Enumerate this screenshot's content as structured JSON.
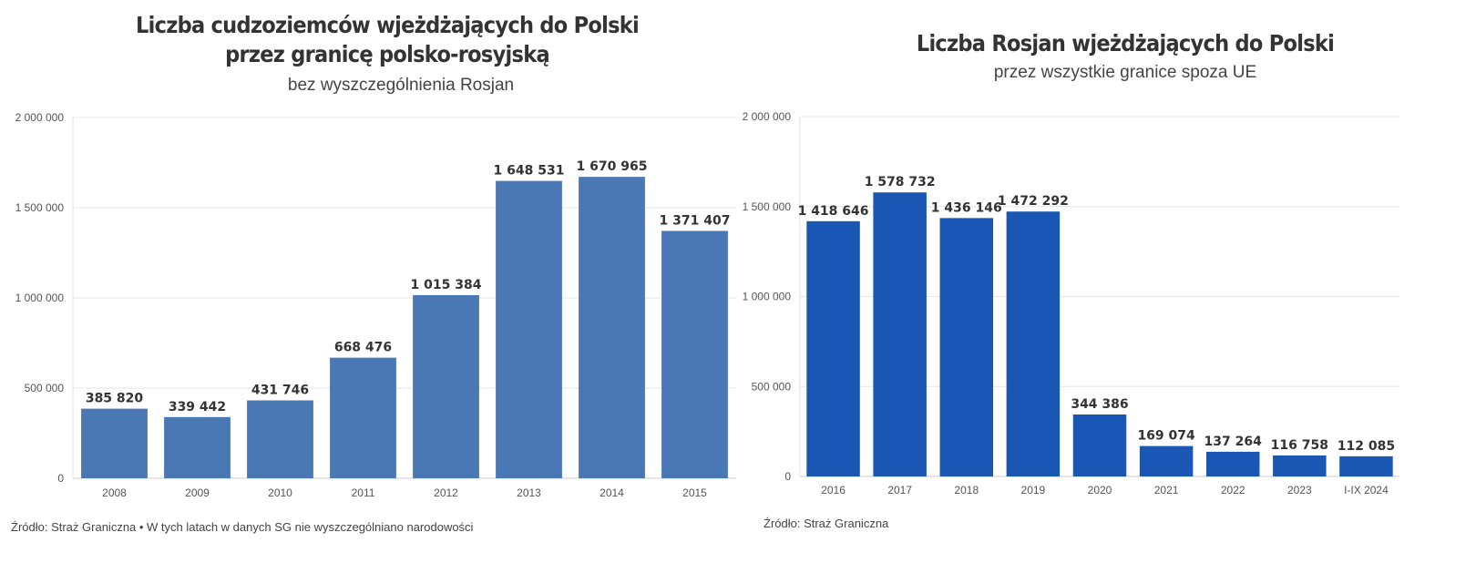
{
  "chart_data": [
    {
      "type": "bar",
      "title": "Liczba cudzoziemców wjeżdżających do Polski\nprzez granicę polsko-rosyjską",
      "title_lines": [
        "Liczba cudzoziemców wjeżdżających do Polski",
        "przez granicę polsko-rosyjską"
      ],
      "subtitle": "bez wyszczególnienia Rosjan",
      "categories": [
        "2008",
        "2009",
        "2010",
        "2011",
        "2012",
        "2013",
        "2014",
        "2015"
      ],
      "values": [
        385820,
        339442,
        431746,
        668476,
        1015384,
        1648531,
        1670965,
        1371407
      ],
      "data_labels": [
        "385 820",
        "339 442",
        "431 746",
        "668 476",
        "1 015 384",
        "1 648 531",
        "1 670 965",
        "1 371 407"
      ],
      "ylim": [
        0,
        2000000
      ],
      "yticks": [
        0,
        500000,
        1000000,
        1500000,
        2000000
      ],
      "ytick_labels": [
        "0",
        "500 000",
        "1 000 000",
        "1 500 000",
        "2 000 000"
      ],
      "xlabel": "",
      "ylabel": "",
      "grid": true,
      "color": "#4a78b5",
      "source": "Źródło: Straż Graniczna • W tych latach w danych SG nie wyszczególniano narodowości"
    },
    {
      "type": "bar",
      "title": "Liczba Rosjan wjeżdżających do Polski",
      "title_lines": [
        "Liczba Rosjan wjeżdżających do Polski"
      ],
      "subtitle": "przez wszystkie granice spoza UE",
      "categories": [
        "2016",
        "2017",
        "2018",
        "2019",
        "2020",
        "2021",
        "2022",
        "2023",
        "I-IX 2024"
      ],
      "values": [
        1418646,
        1578732,
        1436146,
        1472292,
        344386,
        169074,
        137264,
        116758,
        112085
      ],
      "data_labels": [
        "1 418 646",
        "1 578 732",
        "1 436 146",
        "1 472 292",
        "344 386",
        "169 074",
        "137 264",
        "116 758",
        "112 085"
      ],
      "ylim": [
        0,
        2000000
      ],
      "yticks": [
        0,
        500000,
        1000000,
        1500000,
        2000000
      ],
      "ytick_labels": [
        "0",
        "500 000",
        "1 000 000",
        "1 500 000",
        "2 000 000"
      ],
      "xlabel": "",
      "ylabel": "",
      "grid": true,
      "color": "#1a56b4",
      "source": "Źródło: Straż Graniczna"
    }
  ]
}
